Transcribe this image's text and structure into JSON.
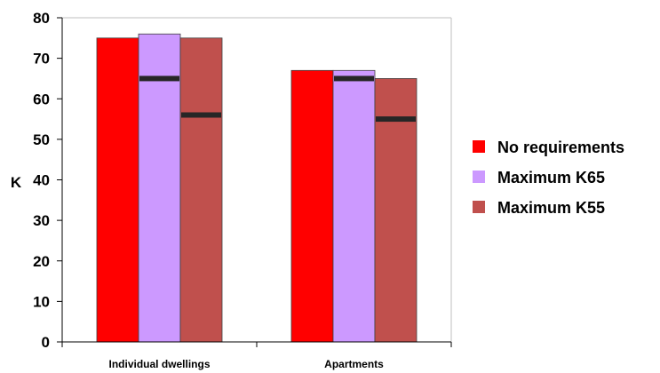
{
  "chart_data": {
    "type": "bar",
    "ylabel": "K",
    "xlabel": "",
    "ylim": [
      0,
      80
    ],
    "yticks": [
      0,
      10,
      20,
      30,
      40,
      50,
      60,
      70,
      80
    ],
    "grid": false,
    "legend_position": "right",
    "categories": [
      "Individual dwellings",
      "Apartments"
    ],
    "series": [
      {
        "name": "No requirements",
        "color": "#ff0000",
        "values": [
          75,
          67
        ],
        "markers": [
          null,
          null
        ]
      },
      {
        "name": "Maximum K65",
        "color": "#cc99ff",
        "values": [
          76,
          67
        ],
        "markers": [
          65,
          65
        ]
      },
      {
        "name": "Maximum K55",
        "color": "#c0504d",
        "values": [
          75,
          65
        ],
        "markers": [
          56,
          55
        ]
      }
    ]
  }
}
